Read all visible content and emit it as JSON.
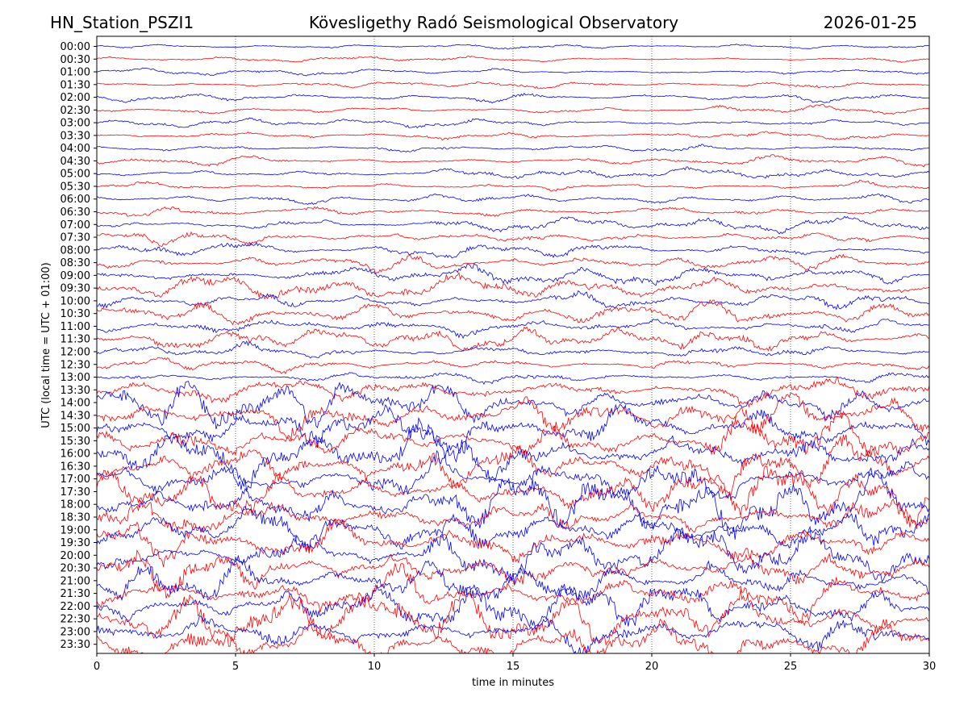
{
  "header": {
    "station": "HN_Station_PSZI1",
    "observatory": "Kövesligethy Radó Seismological Observatory",
    "date": "2026-01-25"
  },
  "chart_data": {
    "type": "line",
    "title": "Kövesligethy Radó Seismological Observatory",
    "xlabel": "time in minutes",
    "ylabel": "UTC (local time = UTC + 01:00)",
    "xlim": [
      0,
      30
    ],
    "x_ticks": [
      "0",
      "5",
      "10",
      "15",
      "20",
      "25",
      "30"
    ],
    "grid": "vertical dotted at x ticks",
    "rows": [
      "00:00",
      "00:30",
      "01:00",
      "01:30",
      "02:00",
      "02:30",
      "03:00",
      "03:30",
      "04:00",
      "04:30",
      "05:00",
      "05:30",
      "06:00",
      "06:30",
      "07:00",
      "07:30",
      "08:00",
      "08:30",
      "09:00",
      "09:30",
      "10:00",
      "10:30",
      "11:00",
      "11:30",
      "12:00",
      "12:30",
      "13:00",
      "13:30",
      "14:00",
      "14:30",
      "15:00",
      "15:30",
      "16:00",
      "16:30",
      "17:00",
      "17:30",
      "18:00",
      "18:30",
      "19:00",
      "19:30",
      "20:00",
      "20:30",
      "21:00",
      "21:30",
      "22:00",
      "22:30",
      "23:00",
      "23:30"
    ],
    "row_colors": [
      "#0000ff",
      "#ff0000"
    ],
    "relative_amplitude": [
      0.35,
      0.35,
      0.4,
      0.5,
      0.6,
      0.6,
      0.55,
      0.55,
      0.6,
      0.6,
      0.6,
      0.65,
      0.7,
      0.8,
      0.9,
      1.0,
      1.1,
      1.2,
      1.3,
      1.4,
      1.5,
      1.5,
      1.5,
      1.4,
      1.1,
      0.9,
      1.0,
      1.5,
      3.0,
      3.2,
      3.3,
      3.4,
      3.5,
      3.5,
      3.5,
      3.5,
      3.4,
      3.4,
      3.3,
      3.3,
      3.3,
      3.3,
      3.2,
      3.2,
      3.2,
      3.2,
      3.2,
      3.2
    ]
  }
}
